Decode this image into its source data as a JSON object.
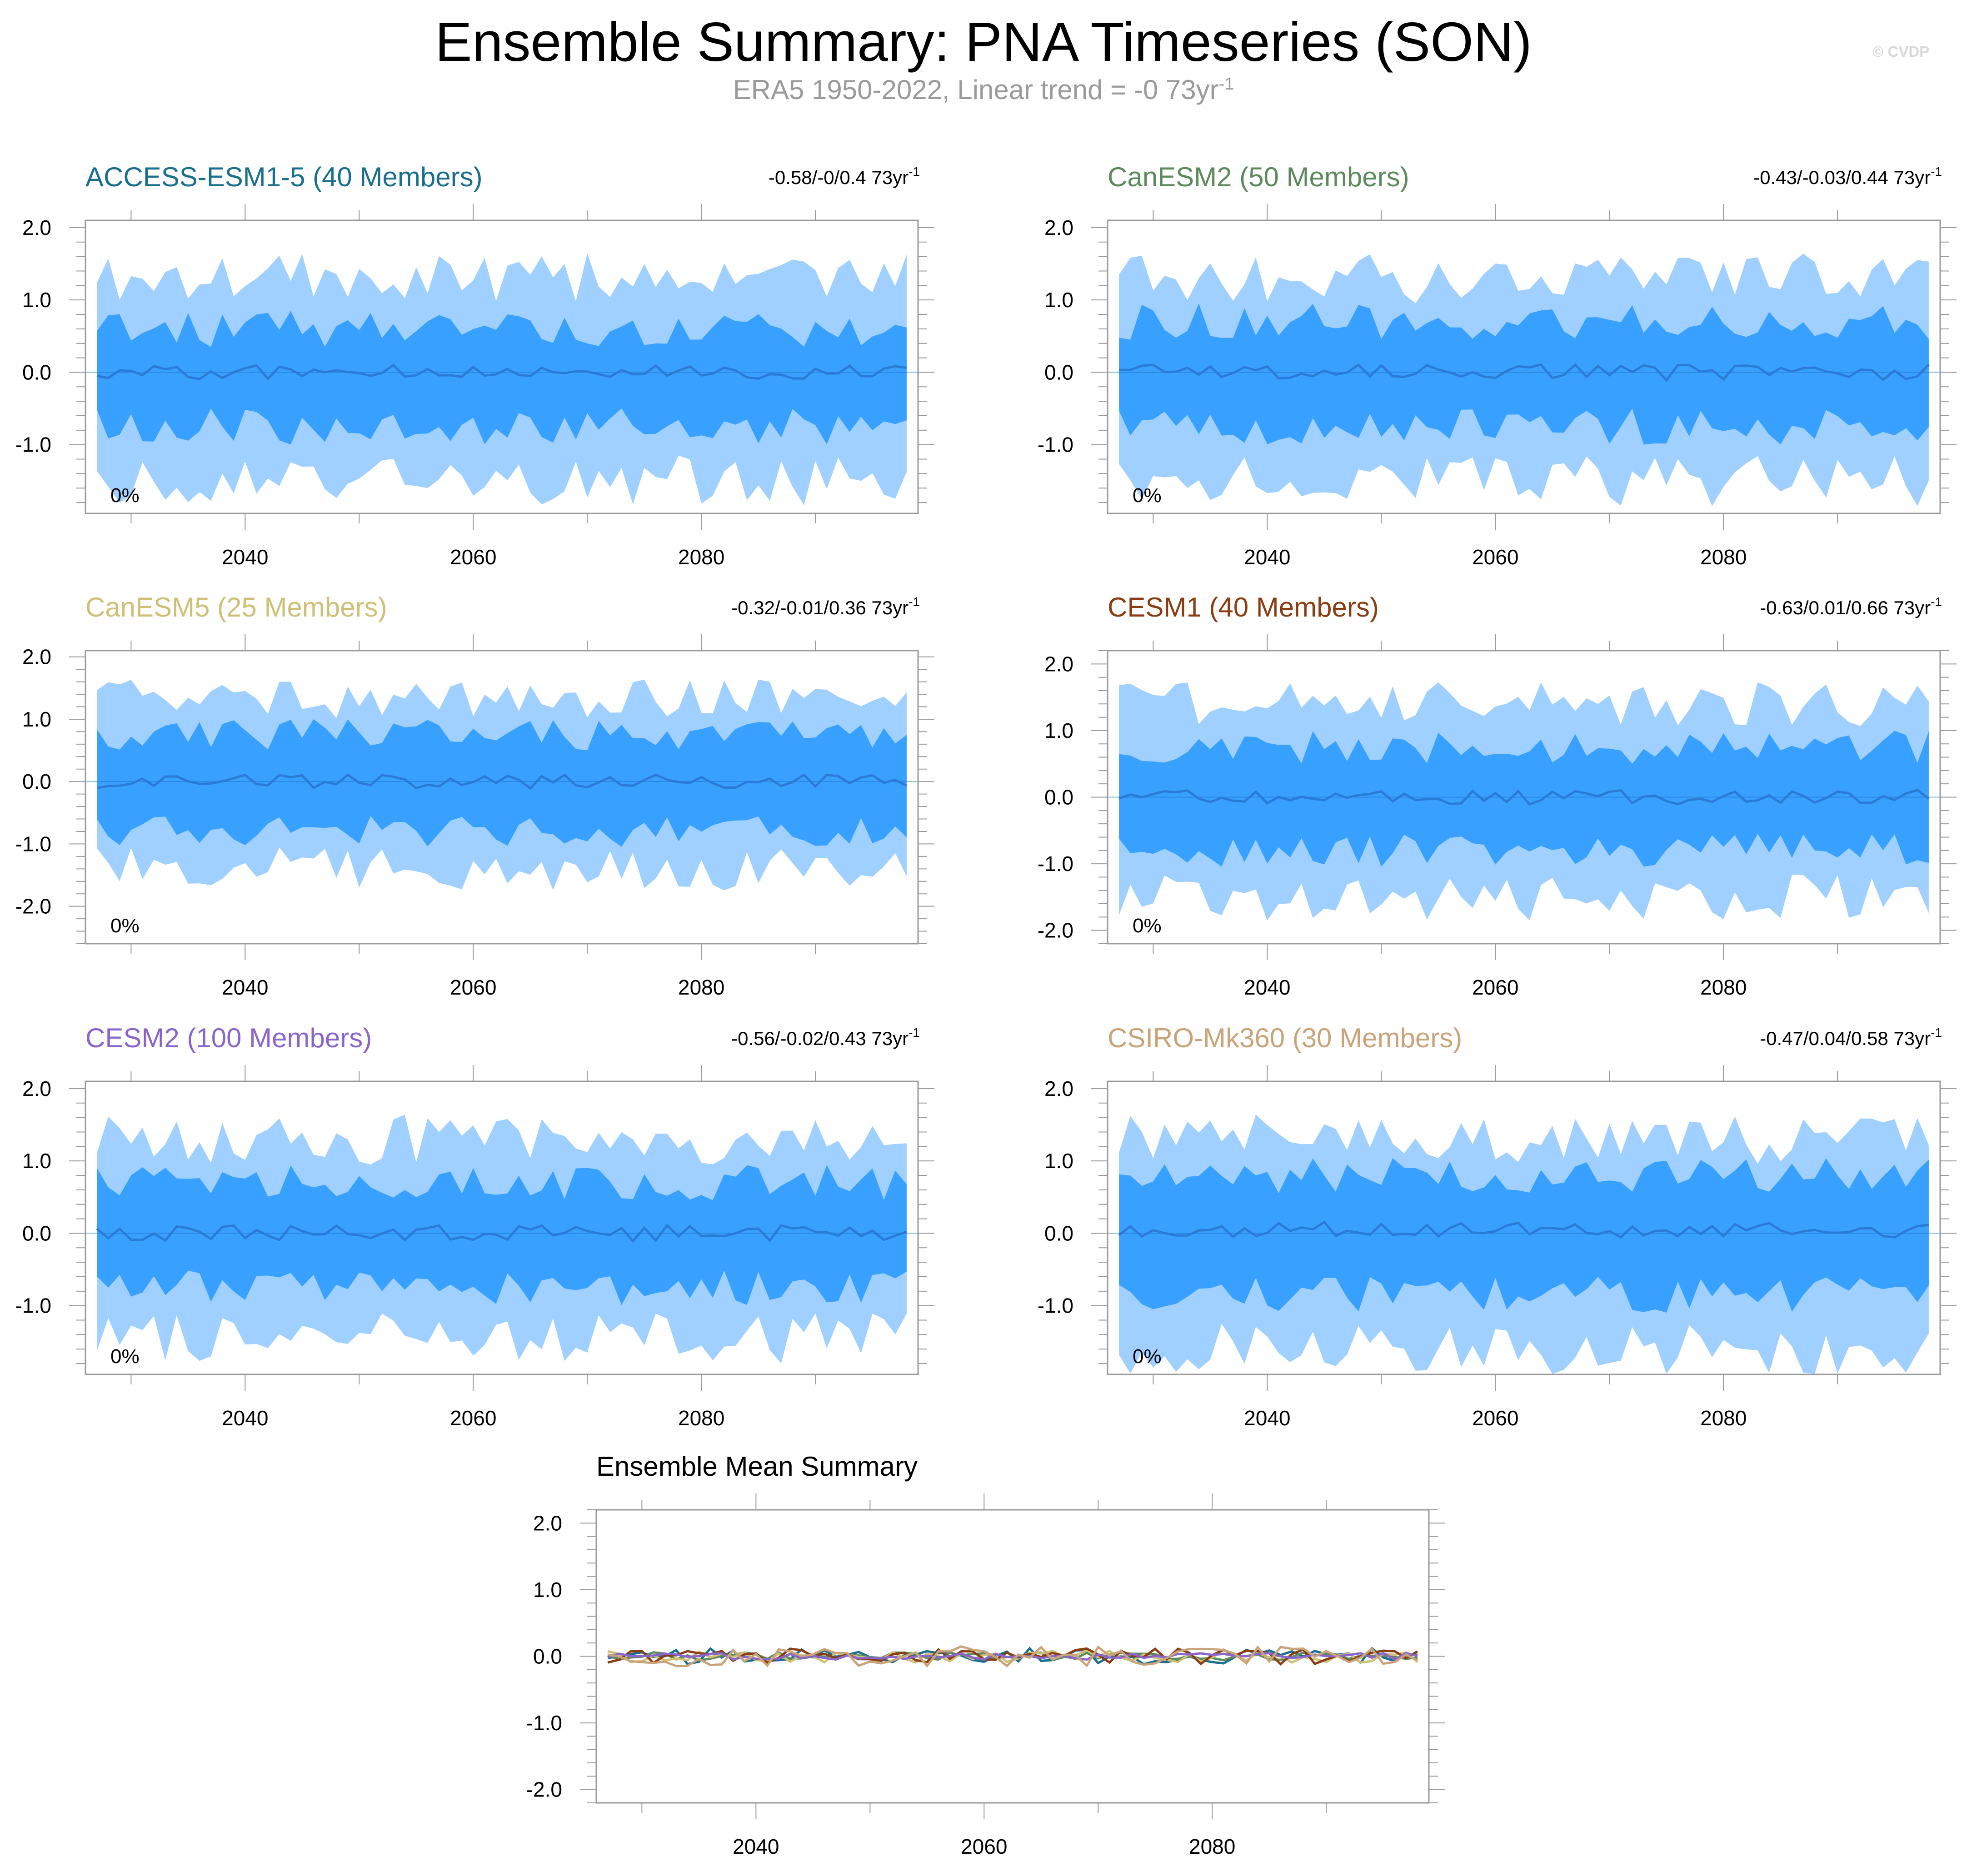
{
  "title": "Ensemble Summary: PNA Timeseries (SON)",
  "subtitle": {
    "text": "ERA5 1950-2022, Linear trend = -0 73yr",
    "exponent": "-1"
  },
  "watermark": "© CVDP",
  "colors": {
    "band_outer": "#9fd0ff",
    "band_inner": "#38a0ff",
    "mean_line": "#2a7bd6",
    "frame": "#9a9a9a"
  },
  "chart_data": [
    {
      "type": "area",
      "panel": "ACCESS-ESM1-5",
      "title": "ACCESS-ESM1-5 (40 Members)",
      "title_color": "#196f8c",
      "trend_label": "-0.58/-0/0.4 73yr",
      "trend_exponent": "-1",
      "percent_label": "0%",
      "xlim": [
        2026,
        2099
      ],
      "ylim": [
        -1.95,
        2.1
      ],
      "yticks": [
        -1.0,
        0.0,
        1.0,
        2.0
      ],
      "ytick_labels": [
        "-1.0",
        "0.0",
        "1.0",
        "2.0"
      ],
      "xticks": [
        2040,
        2060,
        2080
      ],
      "xtick_labels": [
        "2040",
        "2060",
        "2080"
      ],
      "series": [
        {
          "name": "ensemble range",
          "lower_approx": -1.5,
          "upper_approx": 1.3,
          "color": "#9fd0ff"
        },
        {
          "name": "interquartile range",
          "lower_approx": -0.75,
          "upper_approx": 0.6,
          "color": "#38a0ff"
        },
        {
          "name": "ensemble mean",
          "values_approx": 0.0,
          "color": "#2a7bd6"
        }
      ]
    },
    {
      "type": "area",
      "panel": "CanESM2",
      "title": "CanESM2 (50 Members)",
      "title_color": "#5d8a5d",
      "trend_label": "-0.43/-0.03/0.44 73yr",
      "trend_exponent": "-1",
      "percent_label": "0%",
      "xlim": [
        2026,
        2099
      ],
      "ylim": [
        -1.95,
        2.1
      ],
      "yticks": [
        -1.0,
        0.0,
        1.0,
        2.0
      ],
      "ytick_labels": [
        "-1.0",
        "0.0",
        "1.0",
        "2.0"
      ],
      "xticks": [
        2040,
        2060,
        2080
      ],
      "xtick_labels": [
        "2040",
        "2060",
        "2080"
      ],
      "series": [
        {
          "name": "ensemble range",
          "lower_approx": -1.5,
          "upper_approx": 1.3,
          "color": "#9fd0ff"
        },
        {
          "name": "interquartile range",
          "lower_approx": -0.75,
          "upper_approx": 0.7,
          "color": "#38a0ff"
        },
        {
          "name": "ensemble mean",
          "values_approx": 0.0,
          "color": "#2a7bd6"
        }
      ]
    },
    {
      "type": "area",
      "panel": "CanESM5",
      "title": "CanESM5 (25 Members)",
      "title_color": "#cfc078",
      "trend_label": "-0.32/-0.01/0.36 73yr",
      "trend_exponent": "-1",
      "percent_label": "0%",
      "xlim": [
        2026,
        2099
      ],
      "ylim": [
        -2.6,
        2.1
      ],
      "yticks": [
        -2.0,
        -1.0,
        0.0,
        1.0,
        2.0
      ],
      "ytick_labels": [
        "-2.0",
        "-1.0",
        "0.0",
        "1.0",
        "2.0"
      ],
      "xticks": [
        2040,
        2060,
        2080
      ],
      "xtick_labels": [
        "2040",
        "2060",
        "2080"
      ],
      "series": [
        {
          "name": "ensemble range",
          "lower_approx": -1.4,
          "upper_approx": 1.3,
          "color": "#9fd0ff"
        },
        {
          "name": "interquartile range",
          "lower_approx": -0.8,
          "upper_approx": 0.75,
          "color": "#38a0ff"
        },
        {
          "name": "ensemble mean",
          "values_approx": 0.0,
          "color": "#2a7bd6"
        }
      ]
    },
    {
      "type": "area",
      "panel": "CESM1",
      "title": "CESM1 (40 Members)",
      "title_color": "#8a3d12",
      "trend_label": "-0.63/0.01/0.66 73yr",
      "trend_exponent": "-1",
      "percent_label": "0%",
      "xlim": [
        2026,
        2099
      ],
      "ylim": [
        -2.2,
        2.2
      ],
      "yticks": [
        -2.0,
        -1.0,
        0.0,
        1.0,
        2.0
      ],
      "ytick_labels": [
        "-2.0",
        "-1.0",
        "0.0",
        "1.0",
        "2.0"
      ],
      "xticks": [
        2040,
        2060,
        2080
      ],
      "xtick_labels": [
        "2040",
        "2060",
        "2080"
      ],
      "series": [
        {
          "name": "ensemble range",
          "lower_approx": -1.5,
          "upper_approx": 1.4,
          "color": "#9fd0ff"
        },
        {
          "name": "interquartile range",
          "lower_approx": -0.8,
          "upper_approx": 0.75,
          "color": "#38a0ff"
        },
        {
          "name": "ensemble mean",
          "values_approx": 0.0,
          "color": "#2a7bd6"
        }
      ]
    },
    {
      "type": "area",
      "panel": "CESM2",
      "title": "CESM2 (100 Members)",
      "title_color": "#8a66cc",
      "trend_label": "-0.56/-0.02/0.43 73yr",
      "trend_exponent": "-1",
      "percent_label": "0%",
      "xlim": [
        2026,
        2099
      ],
      "ylim": [
        -1.95,
        2.1
      ],
      "yticks": [
        -1.0,
        0.0,
        1.0,
        2.0
      ],
      "ytick_labels": [
        "-1.0",
        "0.0",
        "1.0",
        "2.0"
      ],
      "xticks": [
        2040,
        2060,
        2080
      ],
      "xtick_labels": [
        "2040",
        "2060",
        "2080"
      ],
      "series": [
        {
          "name": "ensemble range",
          "lower_approx": -1.45,
          "upper_approx": 1.3,
          "color": "#9fd0ff"
        },
        {
          "name": "interquartile range",
          "lower_approx": -0.75,
          "upper_approx": 0.7,
          "color": "#38a0ff"
        },
        {
          "name": "ensemble mean",
          "values_approx": 0.0,
          "color": "#2a7bd6"
        }
      ]
    },
    {
      "type": "area",
      "panel": "CSIRO-Mk360",
      "title": "CSIRO-Mk360 (30 Members)",
      "title_color": "#c9a47a",
      "trend_label": "-0.47/0.04/0.58 73yr",
      "trend_exponent": "-1",
      "percent_label": "0%",
      "xlim": [
        2026,
        2099
      ],
      "ylim": [
        -1.95,
        2.1
      ],
      "yticks": [
        -1.0,
        0.0,
        1.0,
        2.0
      ],
      "ytick_labels": [
        "-1.0",
        "0.0",
        "1.0",
        "2.0"
      ],
      "xticks": [
        2040,
        2060,
        2080
      ],
      "xtick_labels": [
        "2040",
        "2060",
        "2080"
      ],
      "series": [
        {
          "name": "ensemble range",
          "lower_approx": -1.6,
          "upper_approx": 1.3,
          "color": "#9fd0ff"
        },
        {
          "name": "interquartile range",
          "lower_approx": -0.85,
          "upper_approx": 0.8,
          "color": "#38a0ff"
        },
        {
          "name": "ensemble mean",
          "values_approx": 0.05,
          "color": "#2a7bd6"
        }
      ]
    },
    {
      "type": "line",
      "panel": "Ensemble Mean Summary",
      "title": "Ensemble Mean Summary",
      "title_color": "#000000",
      "xlim": [
        2026,
        2099
      ],
      "ylim": [
        -2.2,
        2.2
      ],
      "yticks": [
        -2.0,
        -1.0,
        0.0,
        1.0,
        2.0
      ],
      "ytick_labels": [
        "-2.0",
        "-1.0",
        "0.0",
        "1.0",
        "2.0"
      ],
      "xticks": [
        2040,
        2060,
        2080
      ],
      "xtick_labels": [
        "2040",
        "2060",
        "2080"
      ],
      "series": [
        {
          "name": "ACCESS-ESM1-5",
          "amplitude_approx": 0.12,
          "color": "#196f8c"
        },
        {
          "name": "CanESM2",
          "amplitude_approx": 0.06,
          "color": "#5d8a5d"
        },
        {
          "name": "CanESM5",
          "amplitude_approx": 0.1,
          "color": "#cfc078"
        },
        {
          "name": "CESM1",
          "amplitude_approx": 0.12,
          "color": "#8a3d12"
        },
        {
          "name": "CESM2",
          "amplitude_approx": 0.05,
          "color": "#8a66cc"
        },
        {
          "name": "CSIRO-Mk360",
          "amplitude_approx": 0.15,
          "color": "#c9a47a"
        }
      ]
    }
  ]
}
